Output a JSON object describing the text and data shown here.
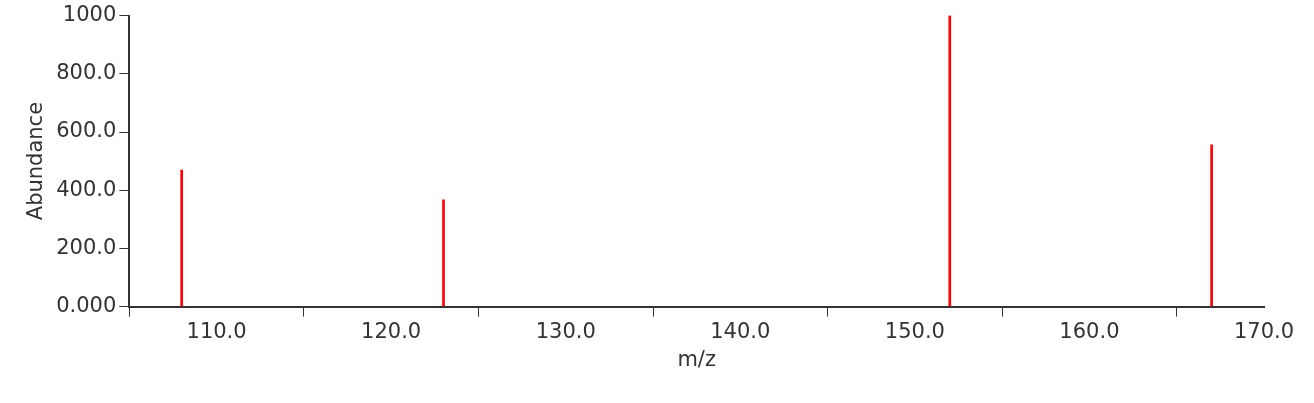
{
  "chart_data": {
    "type": "bar",
    "xlabel": "m/z",
    "ylabel": "Abundance",
    "x": [
      108,
      123,
      152,
      167
    ],
    "series": [
      {
        "color": "#ff0000",
        "values": [
          469,
          367,
          1000,
          556
        ]
      }
    ],
    "xlim": [
      105,
      170
    ],
    "xticks": [
      {
        "value": 110,
        "label": "110.0"
      },
      {
        "value": 120,
        "label": "120.0"
      },
      {
        "value": 130,
        "label": "130.0"
      },
      {
        "value": 140,
        "label": "140.0"
      },
      {
        "value": 150,
        "label": "150.0"
      },
      {
        "value": 160,
        "label": "160.0"
      },
      {
        "value": 170,
        "label": "170.0"
      }
    ],
    "ylim": [
      0,
      1000
    ],
    "yticks": [
      {
        "value": 0,
        "label": "0.000"
      },
      {
        "value": 200,
        "label": "200.0"
      },
      {
        "value": 400,
        "label": "400.0"
      },
      {
        "value": 600,
        "label": "600.0"
      },
      {
        "value": 800,
        "label": "800.0"
      },
      1000
    ],
    "grid": false,
    "legend": false
  }
}
